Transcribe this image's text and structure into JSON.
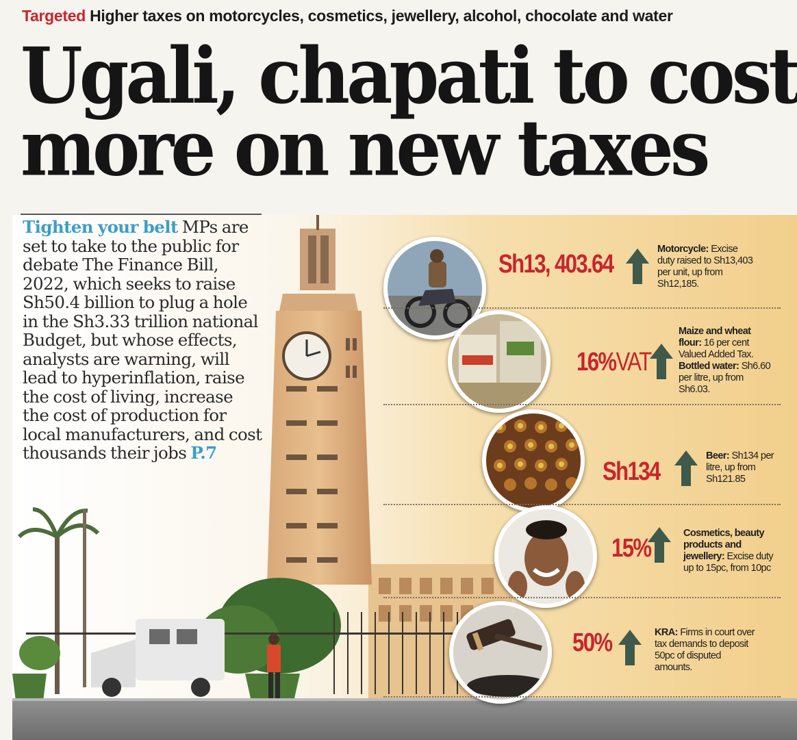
{
  "kicker": {
    "tag": "Targeted",
    "text": "Higher taxes on motorcycles, cosmetics, jewellery, alcohol, chocolate and water"
  },
  "headline": {
    "line1": "Ugali, chapati to cost",
    "line2": "more on new taxes"
  },
  "intro": {
    "lead": "Tighten your belt",
    "body": " MPs are set to take to the public for debate The Finance Bill, 2022, which seeks to raise Sh50.4 billion to plug a hole in the Sh3.33 trillion national Budget, but whose effects, analysts are warning, will lead to hyperinflation, raise the cost of living, increase the cost of production for local manufacturers, and cost thousands their jobs ",
    "page_ref": "P.7"
  },
  "items": [
    {
      "figure": "Sh13, 403.64",
      "desc_bold": "Motorcycle:",
      "desc_text": " Excise duty raised to Sh13,403 per unit, up from Sh12,185.",
      "image": "motorcycle-photo"
    },
    {
      "figure": "16%",
      "figure_suffix": "VAT",
      "desc_bold": "Maize and wheat flour:",
      "desc_text": " 16 per cent Valued Added Tax.",
      "desc_bold2": "Bottled water:",
      "desc_text2": " Sh6.60 per litre, up from Sh6.03.",
      "image": "flour-bags-photo"
    },
    {
      "figure": "Sh134",
      "desc_bold": "Beer:",
      "desc_text": " Sh134 per litre, up from Sh121.85",
      "image": "beer-bottles-photo"
    },
    {
      "figure": "15%",
      "desc_bold": "Cosmetics, beauty products and jewellery:",
      "desc_text": " Excise duty up to 15pc, from 10pc",
      "image": "smiling-woman-photo"
    },
    {
      "figure": "50%",
      "desc_bold": "KRA:",
      "desc_text": " Firms in court over tax demands to deposit 50pc of disputed amounts.",
      "image": "gavel-photo"
    }
  ],
  "colors": {
    "accent_red": "#c8252c",
    "accent_blue": "#3b9ec9",
    "arrow_green": "#3f5a4a",
    "headline": "#151515"
  }
}
